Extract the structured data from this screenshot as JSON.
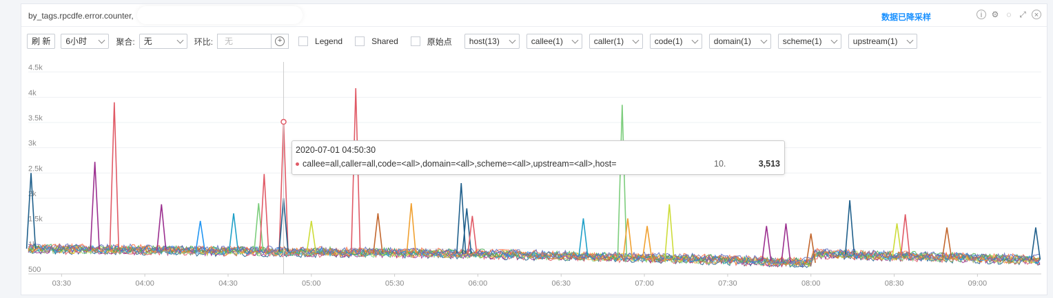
{
  "header": {
    "title": "by_tags.rpcdfe.error.counter,",
    "downsample_label": "数据已降采样",
    "icons": [
      "info-icon",
      "gear-icon",
      "eye-off-icon",
      "expand-icon",
      "close-icon"
    ]
  },
  "toolbar": {
    "refresh_label": "刷 新",
    "time_range": "6小时",
    "agg_label": "聚合:",
    "agg_value": "无",
    "compare_label": "环比:",
    "compare_placeholder": "无",
    "legend_label": "Legend",
    "shared_label": "Shared",
    "raw_points_label": "原始点",
    "filters": [
      "host(13)",
      "callee(1)",
      "caller(1)",
      "code(1)",
      "domain(1)",
      "scheme(1)",
      "upstream(1)"
    ]
  },
  "tooltip": {
    "time": "2020-07-01 04:50:30",
    "series": "callee=all,caller=all,code=<all>,domain=<all>,scheme=<all>,upstream=<all>,host=",
    "host_partial": "10.",
    "value": "3,513"
  },
  "chart_data": {
    "type": "line",
    "series_count": 13,
    "x_start": "03:18",
    "x_end": "09:23",
    "x_ticks": [
      "03:30",
      "04:00",
      "04:30",
      "05:00",
      "05:30",
      "06:00",
      "06:30",
      "07:00",
      "07:30",
      "08:00",
      "08:30",
      "09:00"
    ],
    "y_ticks": [
      "500",
      "1k",
      "1.5k",
      "2k",
      "2.5k",
      "3k",
      "3.5k",
      "4k",
      "4.5k"
    ],
    "ylim": [
      500,
      4700
    ],
    "baseline_values": [
      {
        "time": "03:18",
        "value": 1000
      },
      {
        "time": "06:00",
        "value": 900
      },
      {
        "time": "07:30",
        "value": 780
      },
      {
        "time": "08:00",
        "value": 720
      },
      {
        "time": "08:01",
        "value": 900
      },
      {
        "time": "09:23",
        "value": 780
      }
    ],
    "spikes": [
      {
        "time": "03:19",
        "value": 2500,
        "color": "#1f5f8b"
      },
      {
        "time": "03:42",
        "value": 2720,
        "color": "#9b2f8f"
      },
      {
        "time": "03:49",
        "value": 3900,
        "color": "#e05a66"
      },
      {
        "time": "04:06",
        "value": 1880,
        "color": "#9b2f8f"
      },
      {
        "time": "04:20",
        "value": 1550,
        "color": "#2196f3"
      },
      {
        "time": "04:32",
        "value": 1700,
        "color": "#1fa0c8"
      },
      {
        "time": "04:41",
        "value": 1900,
        "color": "#7ccd7c"
      },
      {
        "time": "04:43",
        "value": 2480,
        "color": "#e05a66"
      },
      {
        "time": "04:50",
        "value": 3513,
        "color": "#e05a66"
      },
      {
        "time": "04:50",
        "value": 2000,
        "color": "#1f5f8b"
      },
      {
        "time": "05:00",
        "value": 1550,
        "color": "#cddc39"
      },
      {
        "time": "05:16",
        "value": 4180,
        "color": "#e05a66"
      },
      {
        "time": "05:24",
        "value": 1700,
        "color": "#c2662d"
      },
      {
        "time": "05:36",
        "value": 1900,
        "color": "#f0a030"
      },
      {
        "time": "05:54",
        "value": 2300,
        "color": "#1f5f8b"
      },
      {
        "time": "05:56",
        "value": 1800,
        "color": "#1f5f8b"
      },
      {
        "time": "05:58",
        "value": 1650,
        "color": "#e05a66"
      },
      {
        "time": "06:38",
        "value": 1600,
        "color": "#1fa0c8"
      },
      {
        "time": "06:52",
        "value": 3850,
        "color": "#7ccd7c"
      },
      {
        "time": "06:54",
        "value": 1600,
        "color": "#f0a030"
      },
      {
        "time": "07:01",
        "value": 1450,
        "color": "#f0a030"
      },
      {
        "time": "07:09",
        "value": 1880,
        "color": "#cddc39"
      },
      {
        "time": "07:44",
        "value": 1450,
        "color": "#9b2f8f"
      },
      {
        "time": "07:51",
        "value": 1500,
        "color": "#9b2f8f"
      },
      {
        "time": "08:00",
        "value": 1300,
        "color": "#c2662d"
      },
      {
        "time": "08:14",
        "value": 1960,
        "color": "#1f5f8b"
      },
      {
        "time": "08:31",
        "value": 1500,
        "color": "#cddc39"
      },
      {
        "time": "08:34",
        "value": 1680,
        "color": "#e05a66"
      },
      {
        "time": "08:49",
        "value": 1420,
        "color": "#c2662d"
      },
      {
        "time": "09:21",
        "value": 1420,
        "color": "#1f5f8b"
      }
    ],
    "palette": [
      "#1f5f8b",
      "#e05a66",
      "#9b2f8f",
      "#7ccd7c",
      "#f0a030",
      "#1fa0c8",
      "#cddc39",
      "#c2662d",
      "#2196f3",
      "#8c6d9e",
      "#4caf50",
      "#ff7043",
      "#5c6bc0"
    ],
    "hover_time": "04:50",
    "hover_value": 3513
  }
}
